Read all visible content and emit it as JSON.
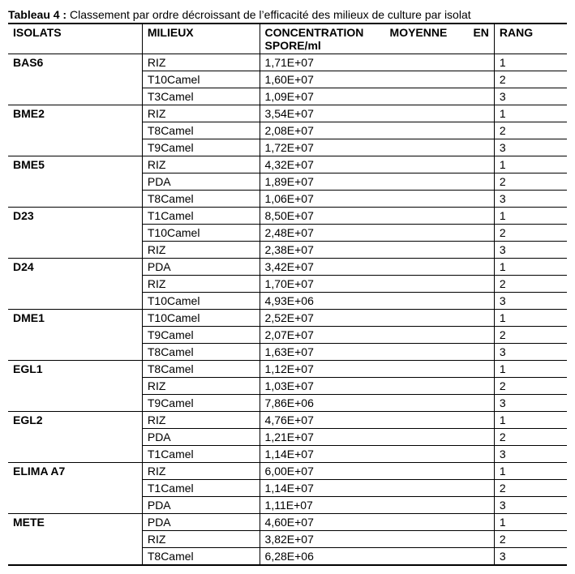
{
  "caption": {
    "label": "Tableau 4 :",
    "text": " Classement par ordre décroissant de l’efficacité des milieux de culture par isolat"
  },
  "headers": {
    "isolats": "ISOLATS",
    "milieux": "MILIEUX",
    "conc_w1": "CONCENTRATION",
    "conc_w2": "MOYENNE",
    "conc_w3": "EN",
    "conc_line2": "SPORE/ml",
    "rang": "RANG"
  },
  "groups": [
    {
      "isolat": "BAS6",
      "rows": [
        {
          "milieu": "RIZ",
          "conc": "1,71E+07",
          "rang": "1"
        },
        {
          "milieu": "T10Camel",
          "conc": "1,60E+07",
          "rang": "2"
        },
        {
          "milieu": "T3Camel",
          "conc": "1,09E+07",
          "rang": "3"
        }
      ]
    },
    {
      "isolat": "BME2",
      "rows": [
        {
          "milieu": "RIZ",
          "conc": "3,54E+07",
          "rang": "1"
        },
        {
          "milieu": "T8Camel",
          "conc": "2,08E+07",
          "rang": "2"
        },
        {
          "milieu": "T9Camel",
          "conc": "1,72E+07",
          "rang": "3"
        }
      ]
    },
    {
      "isolat": "BME5",
      "rows": [
        {
          "milieu": "RIZ",
          "conc": "4,32E+07",
          "rang": "1"
        },
        {
          "milieu": "PDA",
          "conc": "1,89E+07",
          "rang": "2"
        },
        {
          "milieu": "T8Camel",
          "conc": "1,06E+07",
          "rang": "3"
        }
      ]
    },
    {
      "isolat": "D23",
      "rows": [
        {
          "milieu": "T1Camel",
          "conc": "8,50E+07",
          "rang": "1"
        },
        {
          "milieu": "T10Camel",
          "conc": "2,48E+07",
          "rang": "2"
        },
        {
          "milieu": "RIZ",
          "conc": "2,38E+07",
          "rang": "3"
        }
      ]
    },
    {
      "isolat": "D24",
      "rows": [
        {
          "milieu": "PDA",
          "conc": "3,42E+07",
          "rang": "1"
        },
        {
          "milieu": "RIZ",
          "conc": "1,70E+07",
          "rang": "2"
        },
        {
          "milieu": "T10Camel",
          "conc": "4,93E+06",
          "rang": "3"
        }
      ]
    },
    {
      "isolat": "DME1",
      "rows": [
        {
          "milieu": "T10Camel",
          "conc": "2,52E+07",
          "rang": "1"
        },
        {
          "milieu": "T9Camel",
          "conc": "2,07E+07",
          "rang": "2"
        },
        {
          "milieu": "T8Camel",
          "conc": "1,63E+07",
          "rang": "3"
        }
      ]
    },
    {
      "isolat": "EGL1",
      "rows": [
        {
          "milieu": "T8Camel",
          "conc": "1,12E+07",
          "rang": "1"
        },
        {
          "milieu": "RIZ",
          "conc": "1,03E+07",
          "rang": "2"
        },
        {
          "milieu": "T9Camel",
          "conc": "7,86E+06",
          "rang": "3"
        }
      ]
    },
    {
      "isolat": "EGL2",
      "rows": [
        {
          "milieu": "RIZ",
          "conc": "4,76E+07",
          "rang": "1"
        },
        {
          "milieu": "PDA",
          "conc": "1,21E+07",
          "rang": "2"
        },
        {
          "milieu": "T1Camel",
          "conc": "1,14E+07",
          "rang": "3"
        }
      ]
    },
    {
      "isolat": "ELIMA A7",
      "rows": [
        {
          "milieu": "RIZ",
          "conc": "6,00E+07",
          "rang": "1"
        },
        {
          "milieu": "T1Camel",
          "conc": "1,14E+07",
          "rang": "2"
        },
        {
          "milieu": "PDA",
          "conc": "1,11E+07",
          "rang": "3"
        }
      ]
    },
    {
      "isolat": "METE",
      "rows": [
        {
          "milieu": "PDA",
          "conc": "4,60E+07",
          "rang": "1"
        },
        {
          "milieu": "RIZ",
          "conc": "3,82E+07",
          "rang": "2"
        },
        {
          "milieu": "T8Camel",
          "conc": "6,28E+06",
          "rang": "3"
        }
      ]
    }
  ],
  "style": {
    "font_family": "Arial",
    "font_size_pt": 11,
    "header_bold": true,
    "isolat_bold": true,
    "border_color": "#000000",
    "background": "#ffffff"
  }
}
